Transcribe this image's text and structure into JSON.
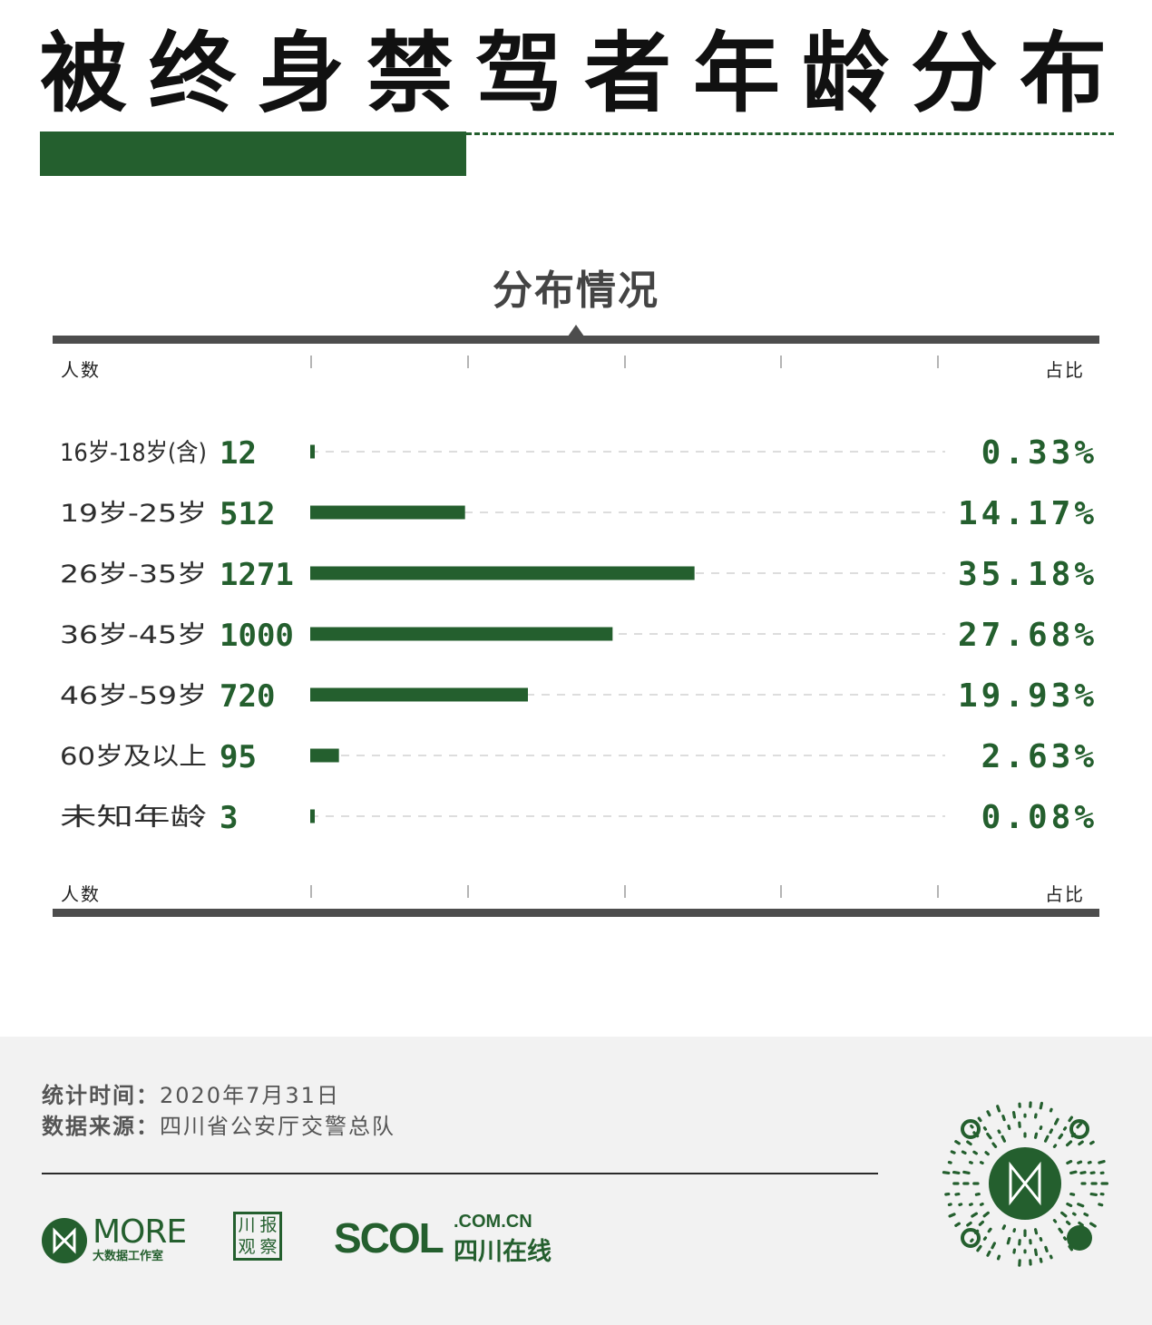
{
  "header": {
    "title": "被终身禁驾者年龄分布"
  },
  "chart_data": {
    "type": "bar",
    "orientation": "horizontal",
    "title": "分布情况",
    "left_axis_label": "人数",
    "right_axis_label": "占比",
    "categories": [
      "16岁-18岁(含)",
      "19岁-25岁",
      "26岁-35岁",
      "36岁-45岁",
      "46岁-59岁",
      "60岁及以上",
      "未知年龄"
    ],
    "values": [
      12,
      512,
      1271,
      1000,
      720,
      95,
      3
    ],
    "value_labels": [
      "12",
      "512",
      "1271",
      "1000",
      "720",
      "95",
      "3"
    ],
    "percent_labels": [
      "0.33%",
      "14.17%",
      "35.18%",
      "27.68%",
      "19.93%",
      "2.63%",
      "0.08%"
    ],
    "xlim": [
      0,
      2100
    ],
    "grid": false,
    "colors": {
      "bar": "#245f2e",
      "track": "#dddddd"
    }
  },
  "footer": {
    "stat_time_label": "统计时间：",
    "stat_time_value": "2020年7月31日",
    "source_label": "数据来源：",
    "source_value": "四川省公安厅交警总队",
    "logos": {
      "more_word": "MORE",
      "more_sub": "大数据工作室",
      "chuan_chars": [
        "川",
        "报",
        "观",
        "察"
      ],
      "scol_big": "SCOL",
      "scol_com": ".COM.CN",
      "scol_cn": "四川在线"
    }
  }
}
